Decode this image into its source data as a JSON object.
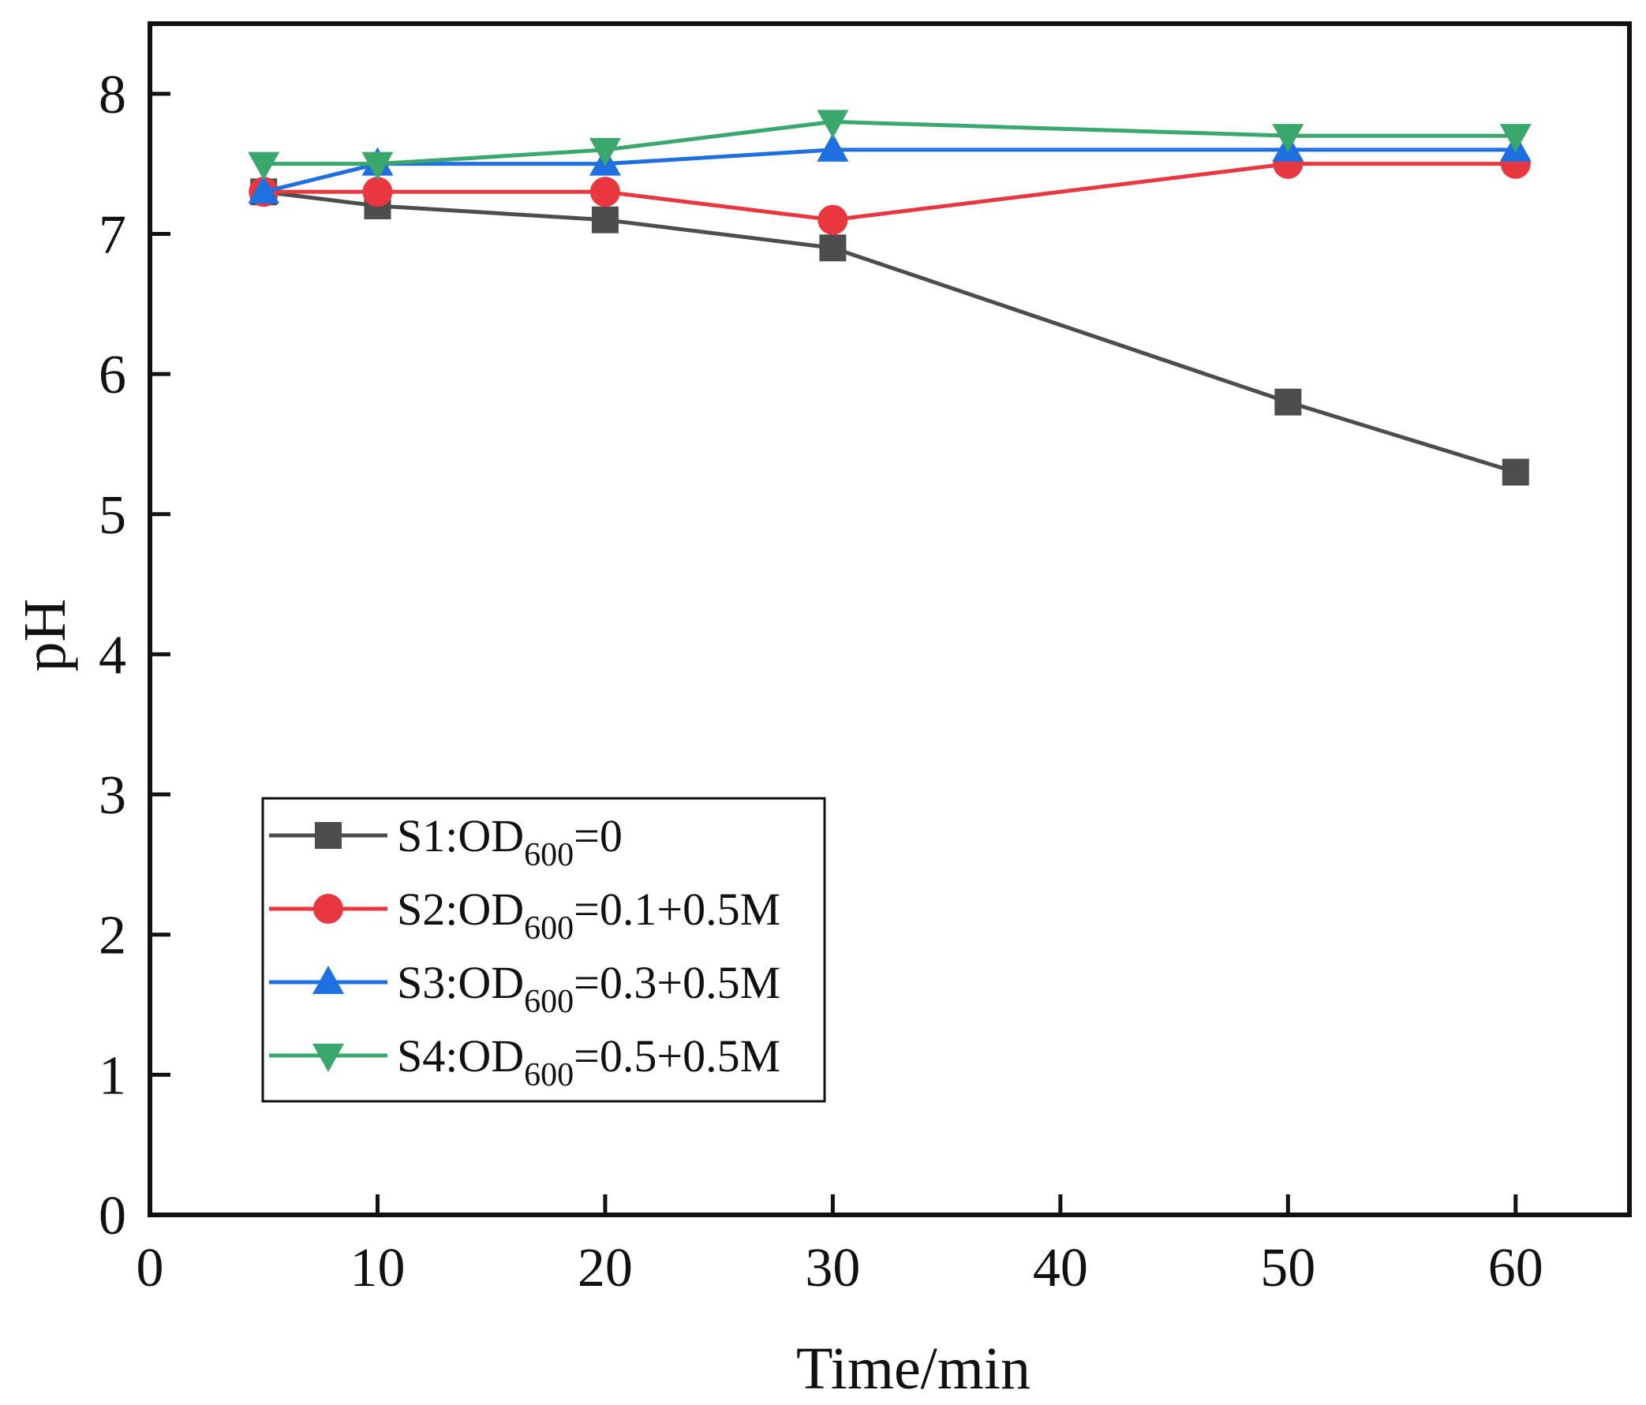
{
  "chart_data": {
    "type": "line",
    "title": "",
    "xlabel": "Time/min",
    "ylabel": "pH",
    "xlim": [
      0,
      65
    ],
    "ylim": [
      0,
      8.5
    ],
    "xticks": [
      0,
      10,
      20,
      30,
      40,
      50,
      60
    ],
    "yticks": [
      0,
      1,
      2,
      3,
      4,
      5,
      6,
      7,
      8
    ],
    "x": [
      5,
      10,
      20,
      30,
      50,
      60
    ],
    "legend_position": "lower-left",
    "series": [
      {
        "name": "S1:OD600=0",
        "label_main": "S1:OD",
        "label_sub": "600",
        "label_tail": "=0",
        "color": "#4d4d4d",
        "marker": "square",
        "values": [
          7.3,
          7.2,
          7.1,
          6.9,
          5.8,
          5.3
        ]
      },
      {
        "name": "S2:OD600=0.1+0.5M",
        "label_main": "S2:OD",
        "label_sub": "600",
        "label_tail": "=0.1+0.5M",
        "color": "#e8373e",
        "marker": "circle",
        "values": [
          7.3,
          7.3,
          7.3,
          7.1,
          7.5,
          7.5
        ]
      },
      {
        "name": "S3:OD600=0.3+0.5M",
        "label_main": "S3:OD",
        "label_sub": "600",
        "label_tail": "=0.3+0.5M",
        "color": "#1f6fe0",
        "marker": "triangle-up",
        "values": [
          7.3,
          7.5,
          7.5,
          7.6,
          7.6,
          7.6
        ]
      },
      {
        "name": "S4:OD600=0.5+0.5M",
        "label_main": "S4:OD",
        "label_sub": "600",
        "label_tail": "=0.5+0.5M",
        "color": "#3aa76d",
        "marker": "triangle-down",
        "values": [
          7.5,
          7.5,
          7.6,
          7.8,
          7.7,
          7.7
        ]
      }
    ]
  }
}
